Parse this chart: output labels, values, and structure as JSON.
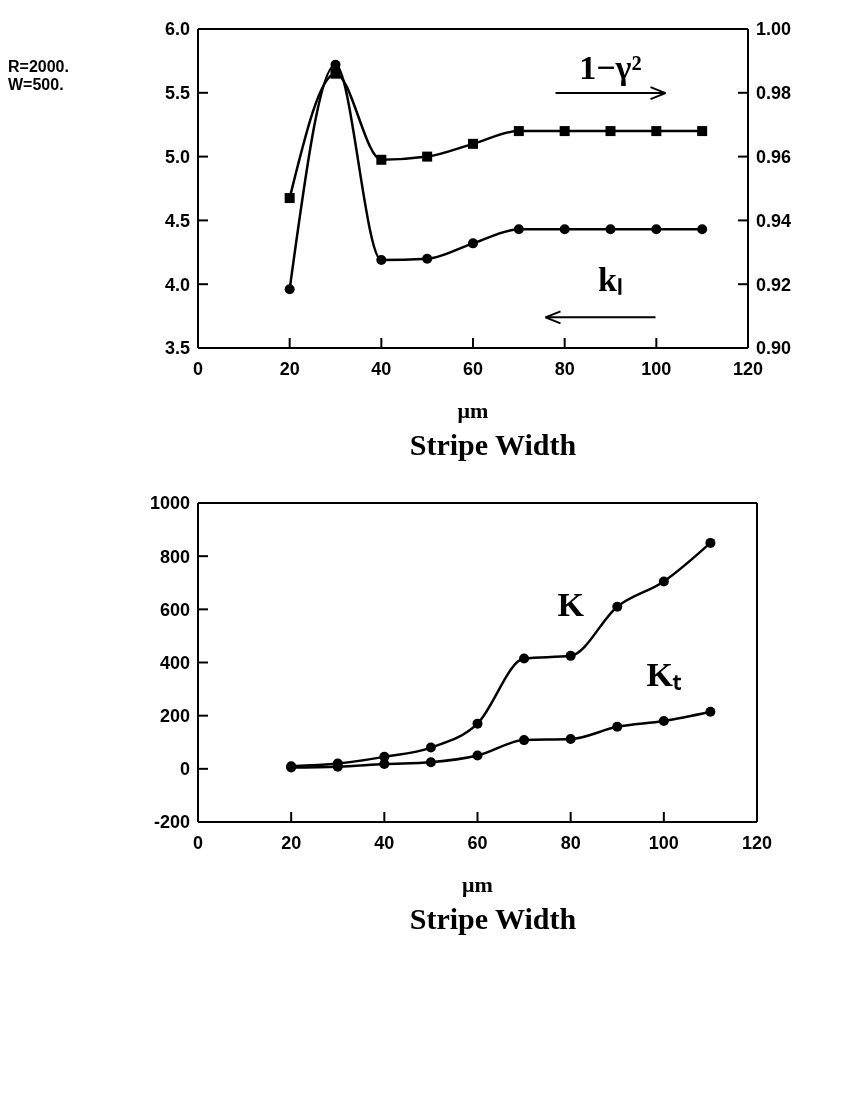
{
  "chart_data": [
    {
      "type": "line",
      "xlabel": "μm",
      "annotations": [
        "R=2000.",
        "W=500.",
        "Stripe Width"
      ],
      "x": [
        20,
        30,
        40,
        50,
        60,
        70,
        80,
        90,
        100,
        110
      ],
      "series": [
        {
          "name": "kₗ",
          "color": "#000000",
          "marker": "circle",
          "values": [
            3.96,
            5.72,
            4.19,
            4.2,
            4.32,
            4.43,
            4.43,
            4.43,
            4.43,
            4.43
          ]
        },
        {
          "name": "1−γ²",
          "color": "#000000",
          "marker": "square",
          "axis": "y2",
          "values": [
            0.947,
            0.986,
            0.959,
            0.96,
            0.964,
            0.968,
            0.968,
            0.968,
            0.968,
            0.968
          ]
        }
      ],
      "xlim": [
        0,
        120
      ],
      "xticks": [
        0,
        20,
        40,
        60,
        80,
        100,
        120
      ],
      "ylim": [
        3.5,
        6.0
      ],
      "yticks": [
        3.5,
        {
          "value": 4.0,
          "label": "4.0"
        },
        4.5,
        {
          "value": 5.0,
          "label": "5.0"
        },
        5.5,
        {
          "value": 6.0,
          "label": "6.0"
        }
      ],
      "y2lim": [
        0.9,
        1.0
      ],
      "y2ticks": [
        {
          "value": 0.9,
          "label": "0.90"
        },
        0.92,
        0.94,
        0.96,
        0.98,
        {
          "value": 1.0,
          "label": "1.00"
        }
      ],
      "grid": false,
      "legend": false
    },
    {
      "type": "line",
      "xlabel": "μm",
      "annotations": [
        "Stripe Width"
      ],
      "x": [
        20,
        30,
        40,
        50,
        60,
        70,
        80,
        90,
        100,
        110
      ],
      "series": [
        {
          "name": "K",
          "color": "#000000",
          "values": [
            10,
            20,
            45,
            80,
            170,
            415,
            425,
            610,
            705,
            850
          ]
        },
        {
          "name": "Kₜ",
          "color": "#000000",
          "values": [
            5,
            8,
            18,
            25,
            50,
            108,
            112,
            158,
            180,
            215
          ]
        }
      ],
      "marker": "circle",
      "xlim": [
        0,
        120
      ],
      "xticks": [
        0,
        20,
        40,
        60,
        80,
        100,
        120
      ],
      "ylim": [
        -200,
        1000
      ],
      "yticks": [
        -200,
        0,
        200,
        400,
        600,
        800,
        1000
      ],
      "grid": false,
      "legend": false
    }
  ]
}
